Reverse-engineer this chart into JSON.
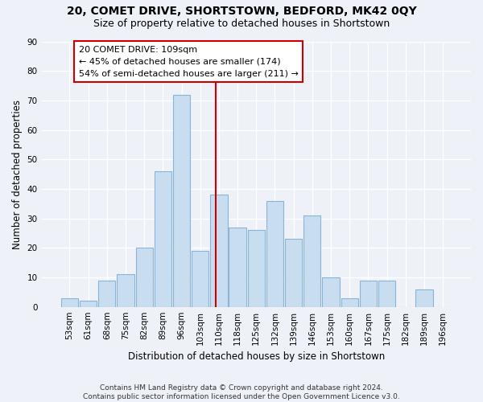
{
  "title": "20, COMET DRIVE, SHORTSTOWN, BEDFORD, MK42 0QY",
  "subtitle": "Size of property relative to detached houses in Shortstown",
  "xlabel": "Distribution of detached houses by size in Shortstown",
  "ylabel": "Number of detached properties",
  "categories": [
    "53sqm",
    "61sqm",
    "68sqm",
    "75sqm",
    "82sqm",
    "89sqm",
    "96sqm",
    "103sqm",
    "110sqm",
    "118sqm",
    "125sqm",
    "132sqm",
    "139sqm",
    "146sqm",
    "153sqm",
    "160sqm",
    "167sqm",
    "175sqm",
    "182sqm",
    "189sqm",
    "196sqm"
  ],
  "values": [
    3,
    2,
    9,
    11,
    20,
    46,
    72,
    19,
    38,
    27,
    26,
    36,
    23,
    31,
    10,
    3,
    9,
    9,
    0,
    6,
    0
  ],
  "bar_color": "#c9ddf0",
  "bar_edge_color": "#8ab4d4",
  "subject_line_color": "#cc0000",
  "annotation_text": "20 COMET DRIVE: 109sqm\n← 45% of detached houses are smaller (174)\n54% of semi-detached houses are larger (211) →",
  "annotation_box_facecolor": "white",
  "annotation_box_edgecolor": "#cc0000",
  "ylim": [
    0,
    90
  ],
  "yticks": [
    0,
    10,
    20,
    30,
    40,
    50,
    60,
    70,
    80,
    90
  ],
  "bg_color": "#eef2f8",
  "grid_color": "#ffffff",
  "footer": "Contains HM Land Registry data © Crown copyright and database right 2024.\nContains public sector information licensed under the Open Government Licence v3.0.",
  "title_fontsize": 10,
  "subtitle_fontsize": 9,
  "tick_fontsize": 7.5,
  "xlabel_fontsize": 8.5,
  "ylabel_fontsize": 8.5,
  "footer_fontsize": 6.5,
  "annot_fontsize": 8,
  "subject_line_index": 7.85
}
